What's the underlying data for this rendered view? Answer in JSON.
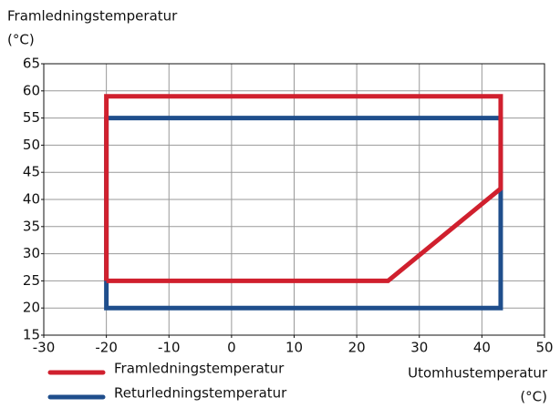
{
  "chart_data": {
    "type": "line",
    "ylabel": [
      "Framledningstemperatur",
      "(°C)"
    ],
    "xlabel": [
      "Utomhustemperatur",
      "(°C)"
    ],
    "xlim": [
      -30,
      50
    ],
    "xticks": [
      -30,
      -20,
      -10,
      0,
      10,
      20,
      30,
      40,
      50
    ],
    "ylim": [
      15,
      65
    ],
    "yticks": [
      15,
      20,
      25,
      30,
      35,
      40,
      45,
      50,
      55,
      60,
      65
    ],
    "grid": true,
    "series": [
      {
        "name": "Returledningstemperatur",
        "color": "#1f4e8c",
        "x": [
          -20,
          -20,
          43,
          43,
          -20,
          -20
        ],
        "values": [
          25,
          20,
          20,
          55,
          55,
          25
        ]
      },
      {
        "name": "Framledningstemperatur",
        "color": "#d0202e",
        "x": [
          -20,
          -20,
          43,
          43,
          25,
          -20
        ],
        "values": [
          25,
          59,
          59,
          42,
          25,
          25
        ]
      }
    ]
  }
}
